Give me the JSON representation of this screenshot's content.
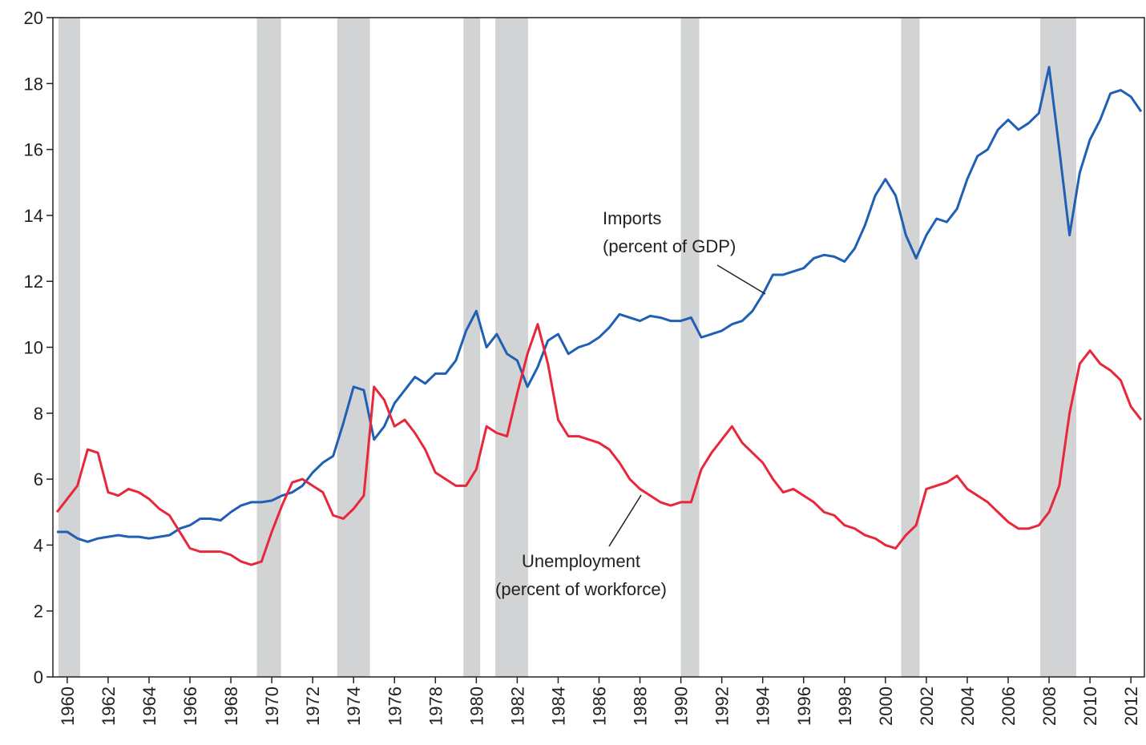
{
  "chart_data": {
    "type": "line",
    "xlim": [
      1959.3,
      2012.66
    ],
    "xticks": [
      1960,
      1962,
      1964,
      1966,
      1968,
      1970,
      1972,
      1974,
      1976,
      1978,
      1980,
      1982,
      1984,
      1986,
      1988,
      1990,
      1992,
      1994,
      1996,
      1998,
      2000,
      2002,
      2004,
      2006,
      2008,
      2010,
      2012
    ],
    "ylim": [
      0,
      20
    ],
    "yticks": [
      0,
      2,
      4,
      6,
      8,
      10,
      12,
      14,
      16,
      18,
      20
    ],
    "shaded_periods": [
      [
        1959.57,
        1960.63
      ],
      [
        1969.27,
        1970.45
      ],
      [
        1973.2,
        1974.8
      ],
      [
        1979.37,
        1980.19
      ],
      [
        1980.93,
        1982.53
      ],
      [
        1990.0,
        1990.9
      ],
      [
        2000.77,
        2001.67
      ],
      [
        2007.57,
        2009.33
      ]
    ],
    "x": [
      1959.5,
      1960,
      1960.5,
      1961,
      1961.5,
      1962,
      1962.5,
      1963,
      1963.5,
      1964,
      1964.5,
      1965,
      1965.5,
      1966,
      1966.5,
      1967,
      1967.5,
      1968,
      1968.5,
      1969,
      1969.5,
      1970,
      1970.5,
      1971,
      1971.5,
      1972,
      1972.5,
      1973,
      1973.5,
      1974,
      1974.5,
      1975,
      1975.5,
      1976,
      1976.5,
      1977,
      1977.5,
      1978,
      1978.5,
      1979,
      1979.5,
      1980,
      1980.5,
      1981,
      1981.5,
      1982,
      1982.5,
      1983,
      1983.5,
      1984,
      1984.5,
      1985,
      1985.5,
      1986,
      1986.5,
      1987,
      1987.5,
      1988,
      1988.5,
      1989,
      1989.5,
      1990,
      1990.5,
      1991,
      1991.5,
      1992,
      1992.5,
      1993,
      1993.5,
      1994,
      1994.5,
      1995,
      1995.5,
      1996,
      1996.5,
      1997,
      1997.5,
      1998,
      1998.5,
      1999,
      1999.5,
      2000,
      2000.5,
      2001,
      2001.5,
      2002,
      2002.5,
      2003,
      2003.5,
      2004,
      2004.5,
      2005,
      2005.5,
      2006,
      2006.5,
      2007,
      2007.5,
      2008,
      2008.5,
      2009,
      2009.5,
      2010,
      2010.5,
      2011,
      2011.5,
      2012,
      2012.5
    ],
    "series": [
      {
        "label": [
          "Imports",
          "(percent of GDP)"
        ],
        "color": "#1f5fb4",
        "values": [
          4.4,
          4.4,
          4.2,
          4.1,
          4.2,
          4.25,
          4.3,
          4.25,
          4.25,
          4.2,
          4.25,
          4.3,
          4.5,
          4.6,
          4.8,
          4.8,
          4.75,
          5.0,
          5.2,
          5.3,
          5.3,
          5.35,
          5.5,
          5.6,
          5.8,
          6.2,
          6.5,
          6.7,
          7.7,
          8.8,
          8.7,
          7.2,
          7.6,
          8.3,
          8.7,
          9.1,
          8.9,
          9.2,
          9.2,
          9.6,
          10.5,
          11.1,
          10.0,
          10.4,
          9.8,
          9.6,
          8.8,
          9.4,
          10.2,
          10.4,
          9.8,
          10.0,
          10.1,
          10.3,
          10.6,
          11.0,
          10.9,
          10.8,
          10.95,
          10.9,
          10.8,
          10.8,
          10.9,
          10.3,
          10.4,
          10.5,
          10.7,
          10.8,
          11.1,
          11.6,
          12.2,
          12.2,
          12.3,
          12.4,
          12.7,
          12.8,
          12.75,
          12.6,
          13.0,
          13.7,
          14.6,
          15.1,
          14.6,
          13.4,
          12.7,
          13.4,
          13.9,
          13.8,
          14.2,
          15.1,
          15.8,
          16.0,
          16.6,
          16.9,
          16.6,
          16.8,
          17.1,
          18.5,
          16.0,
          13.4,
          15.3,
          16.3,
          16.9,
          17.7,
          17.8,
          17.6,
          17.15
        ]
      },
      {
        "label": [
          "Unemployment",
          "(percent of workforce)"
        ],
        "color": "#e8273a",
        "values": [
          5.0,
          5.4,
          5.8,
          6.9,
          6.8,
          5.6,
          5.5,
          5.7,
          5.6,
          5.4,
          5.1,
          4.9,
          4.4,
          3.9,
          3.8,
          3.8,
          3.8,
          3.7,
          3.5,
          3.4,
          3.5,
          4.4,
          5.2,
          5.9,
          6.0,
          5.8,
          5.6,
          4.9,
          4.8,
          5.1,
          5.5,
          8.8,
          8.4,
          7.6,
          7.8,
          7.4,
          6.9,
          6.2,
          6.0,
          5.8,
          5.8,
          6.3,
          7.6,
          7.4,
          7.3,
          8.6,
          9.8,
          10.7,
          9.5,
          7.8,
          7.3,
          7.3,
          7.2,
          7.1,
          6.9,
          6.5,
          6.0,
          5.7,
          5.5,
          5.3,
          5.2,
          5.3,
          5.3,
          6.3,
          6.8,
          7.2,
          7.6,
          7.1,
          6.8,
          6.5,
          6.0,
          5.6,
          5.7,
          5.5,
          5.3,
          5.0,
          4.9,
          4.6,
          4.5,
          4.3,
          4.2,
          4.0,
          3.9,
          4.3,
          4.6,
          5.7,
          5.8,
          5.9,
          6.1,
          5.7,
          5.5,
          5.3,
          5.0,
          4.7,
          4.5,
          4.5,
          4.6,
          5.0,
          5.8,
          8.0,
          9.5,
          9.9,
          9.5,
          9.3,
          9.0,
          8.2,
          7.8
        ]
      }
    ]
  }
}
